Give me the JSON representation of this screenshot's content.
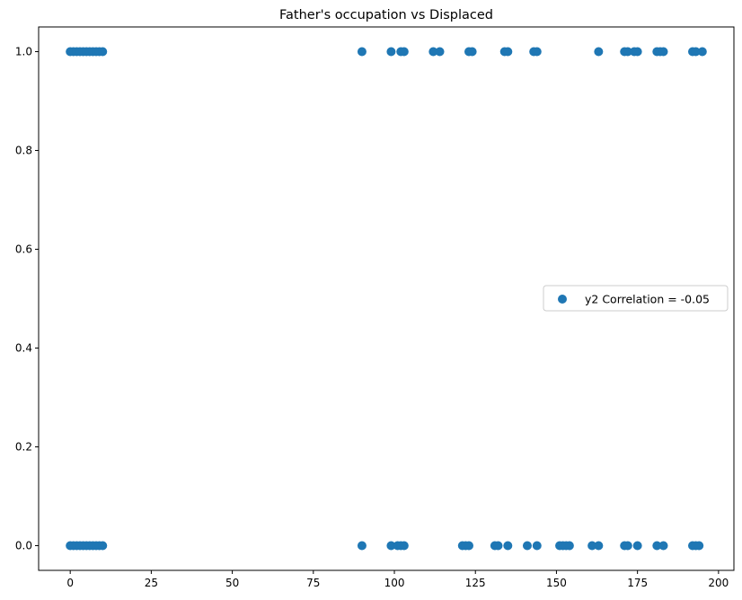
{
  "chart_data": {
    "type": "scatter",
    "title": "Father's occupation vs Displaced",
    "xlabel": "",
    "ylabel": "",
    "xlim": [
      -9.75,
      204.75
    ],
    "ylim": [
      -0.05,
      1.05
    ],
    "xticks": [
      0,
      25,
      50,
      75,
      100,
      125,
      150,
      175,
      200
    ],
    "xtick_labels": [
      "0",
      "25",
      "50",
      "75",
      "100",
      "125",
      "150",
      "175",
      "200"
    ],
    "yticks": [
      0.0,
      0.2,
      0.4,
      0.6,
      0.8,
      1.0
    ],
    "ytick_labels": [
      "0.0",
      "0.2",
      "0.4",
      "0.6",
      "0.8",
      "1.0"
    ],
    "grid": false,
    "legend_position": "center-right",
    "series": [
      {
        "name": "y2 Correlation = -0.05",
        "color": "#1f77b4",
        "points": [
          {
            "x": 0,
            "y": 1
          },
          {
            "x": 1,
            "y": 1
          },
          {
            "x": 2,
            "y": 1
          },
          {
            "x": 3,
            "y": 1
          },
          {
            "x": 4,
            "y": 1
          },
          {
            "x": 5,
            "y": 1
          },
          {
            "x": 6,
            "y": 1
          },
          {
            "x": 7,
            "y": 1
          },
          {
            "x": 8,
            "y": 1
          },
          {
            "x": 9,
            "y": 1
          },
          {
            "x": 10,
            "y": 1
          },
          {
            "x": 90,
            "y": 1
          },
          {
            "x": 99,
            "y": 1
          },
          {
            "x": 102,
            "y": 1
          },
          {
            "x": 103,
            "y": 1
          },
          {
            "x": 112,
            "y": 1
          },
          {
            "x": 114,
            "y": 1
          },
          {
            "x": 123,
            "y": 1
          },
          {
            "x": 124,
            "y": 1
          },
          {
            "x": 134,
            "y": 1
          },
          {
            "x": 135,
            "y": 1
          },
          {
            "x": 143,
            "y": 1
          },
          {
            "x": 144,
            "y": 1
          },
          {
            "x": 163,
            "y": 1
          },
          {
            "x": 171,
            "y": 1
          },
          {
            "x": 172,
            "y": 1
          },
          {
            "x": 174,
            "y": 1
          },
          {
            "x": 175,
            "y": 1
          },
          {
            "x": 181,
            "y": 1
          },
          {
            "x": 182,
            "y": 1
          },
          {
            "x": 183,
            "y": 1
          },
          {
            "x": 192,
            "y": 1
          },
          {
            "x": 193,
            "y": 1
          },
          {
            "x": 195,
            "y": 1
          },
          {
            "x": 0,
            "y": 0
          },
          {
            "x": 1,
            "y": 0
          },
          {
            "x": 2,
            "y": 0
          },
          {
            "x": 3,
            "y": 0
          },
          {
            "x": 4,
            "y": 0
          },
          {
            "x": 5,
            "y": 0
          },
          {
            "x": 6,
            "y": 0
          },
          {
            "x": 7,
            "y": 0
          },
          {
            "x": 8,
            "y": 0
          },
          {
            "x": 9,
            "y": 0
          },
          {
            "x": 10,
            "y": 0
          },
          {
            "x": 90,
            "y": 0
          },
          {
            "x": 99,
            "y": 0
          },
          {
            "x": 101,
            "y": 0
          },
          {
            "x": 102,
            "y": 0
          },
          {
            "x": 103,
            "y": 0
          },
          {
            "x": 121,
            "y": 0
          },
          {
            "x": 122,
            "y": 0
          },
          {
            "x": 123,
            "y": 0
          },
          {
            "x": 131,
            "y": 0
          },
          {
            "x": 132,
            "y": 0
          },
          {
            "x": 135,
            "y": 0
          },
          {
            "x": 141,
            "y": 0
          },
          {
            "x": 144,
            "y": 0
          },
          {
            "x": 151,
            "y": 0
          },
          {
            "x": 152,
            "y": 0
          },
          {
            "x": 153,
            "y": 0
          },
          {
            "x": 154,
            "y": 0
          },
          {
            "x": 161,
            "y": 0
          },
          {
            "x": 163,
            "y": 0
          },
          {
            "x": 171,
            "y": 0
          },
          {
            "x": 172,
            "y": 0
          },
          {
            "x": 175,
            "y": 0
          },
          {
            "x": 181,
            "y": 0
          },
          {
            "x": 183,
            "y": 0
          },
          {
            "x": 192,
            "y": 0
          },
          {
            "x": 193,
            "y": 0
          },
          {
            "x": 194,
            "y": 0
          }
        ]
      }
    ]
  }
}
